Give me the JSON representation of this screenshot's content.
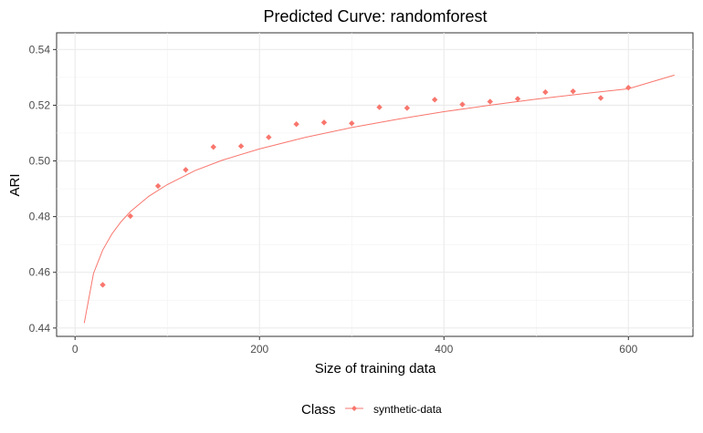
{
  "chart_data": {
    "type": "scatter",
    "title": "Predicted Curve: randomforest",
    "xlabel": "Size of training data",
    "ylabel": "ARI",
    "xlim": [
      -20,
      670
    ],
    "ylim": [
      0.437,
      0.546
    ],
    "x_ticks": [
      0,
      200,
      400,
      600
    ],
    "x_tick_labels": [
      "0",
      "200",
      "400",
      "600"
    ],
    "y_ticks": [
      0.44,
      0.46,
      0.48,
      0.5,
      0.52,
      0.54
    ],
    "y_tick_labels": [
      "0.44",
      "0.46",
      "0.48",
      "0.50",
      "0.52",
      "0.54"
    ],
    "grid": true,
    "legend": {
      "title": "Class",
      "position": "bottom",
      "entries": [
        "synthetic-data"
      ]
    },
    "series": [
      {
        "name": "synthetic-data",
        "color": "#f8766d",
        "points": [
          {
            "x": 30,
            "y": 0.4555
          },
          {
            "x": 60,
            "y": 0.4802
          },
          {
            "x": 90,
            "y": 0.491
          },
          {
            "x": 120,
            "y": 0.4968
          },
          {
            "x": 150,
            "y": 0.505
          },
          {
            "x": 180,
            "y": 0.5053
          },
          {
            "x": 210,
            "y": 0.5085
          },
          {
            "x": 240,
            "y": 0.5132
          },
          {
            "x": 270,
            "y": 0.5138
          },
          {
            "x": 300,
            "y": 0.5135
          },
          {
            "x": 330,
            "y": 0.5193
          },
          {
            "x": 360,
            "y": 0.519
          },
          {
            "x": 390,
            "y": 0.522
          },
          {
            "x": 420,
            "y": 0.5203
          },
          {
            "x": 450,
            "y": 0.5213
          },
          {
            "x": 480,
            "y": 0.5223
          },
          {
            "x": 510,
            "y": 0.5247
          },
          {
            "x": 540,
            "y": 0.525
          },
          {
            "x": 570,
            "y": 0.5226
          },
          {
            "x": 600,
            "y": 0.5263
          }
        ],
        "fitted_curve": {
          "x": [
            10,
            20,
            30,
            40,
            50,
            60,
            80,
            100,
            130,
            160,
            200,
            250,
            300,
            350,
            400,
            450,
            500,
            550,
            600,
            650
          ],
          "y": [
            0.4418,
            0.4596,
            0.468,
            0.4738,
            0.4782,
            0.4818,
            0.4873,
            0.4915,
            0.4965,
            0.5003,
            0.5043,
            0.5085,
            0.512,
            0.515,
            0.5177,
            0.52,
            0.5222,
            0.5241,
            0.5259,
            0.5308
          ]
        }
      }
    ]
  }
}
